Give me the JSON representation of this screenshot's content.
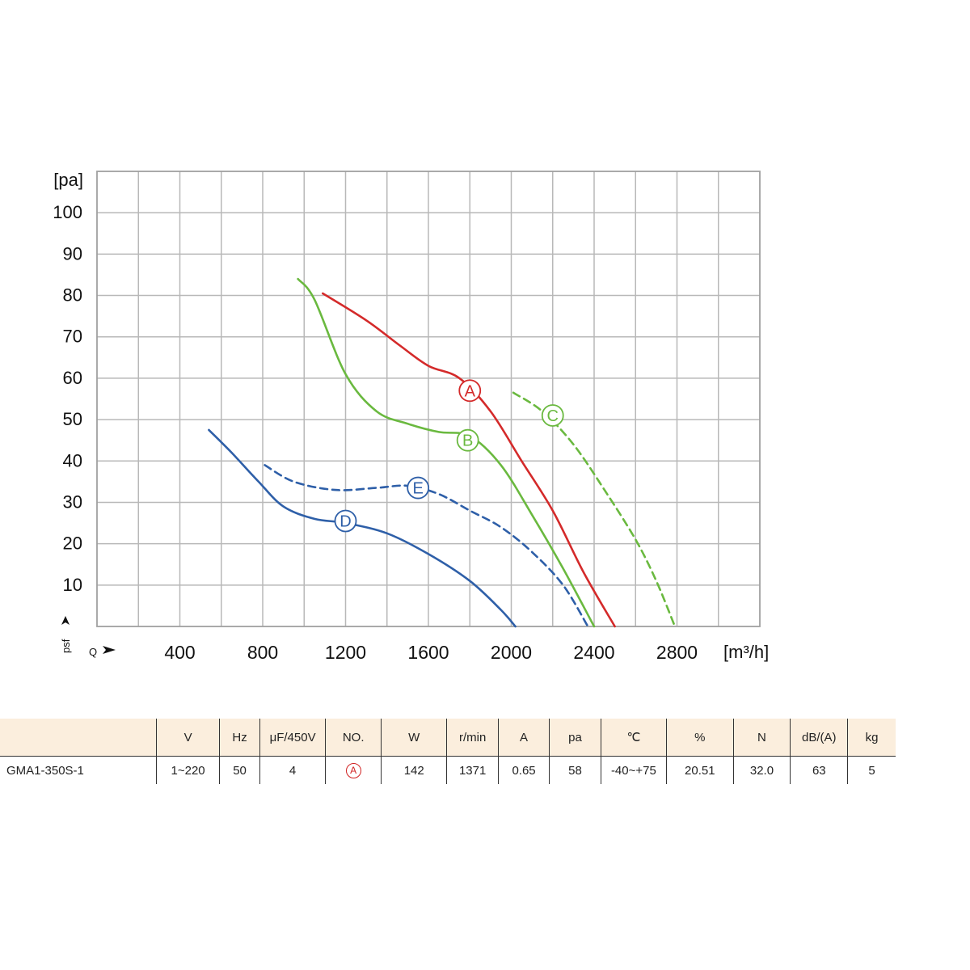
{
  "chart_data": {
    "type": "line",
    "y_unit": "[pa]",
    "x_unit": "[m³/h]",
    "y_axis_symbol": "psf",
    "x_axis_symbol": "Q",
    "xlim": [
      0,
      3200
    ],
    "ylim": [
      0,
      110
    ],
    "x_ticks": [
      400,
      800,
      1200,
      1600,
      2000,
      2400,
      2800
    ],
    "y_ticks": [
      10,
      20,
      30,
      40,
      50,
      60,
      70,
      80,
      90,
      100
    ],
    "grid": true,
    "series": [
      {
        "name": "A",
        "color": "#d42a2a",
        "dashed": false,
        "x": [
          1090,
          1300,
          1460,
          1600,
          1750,
          1900,
          2050,
          2200,
          2350,
          2500
        ],
        "y": [
          80.5,
          74,
          68,
          63,
          60,
          52,
          40,
          28,
          13,
          0
        ],
        "label_at": [
          1800,
          57
        ]
      },
      {
        "name": "B",
        "color": "#6ab93f",
        "dashed": false,
        "x": [
          970,
          1050,
          1200,
          1350,
          1500,
          1650,
          1800,
          1950,
          2100,
          2250,
          2400
        ],
        "y": [
          84,
          79,
          61,
          52,
          49,
          47,
          46,
          39,
          27,
          14,
          0
        ],
        "label_at": [
          1790,
          45
        ]
      },
      {
        "name": "C",
        "color": "#6ab93f",
        "dashed": true,
        "x": [
          2010,
          2150,
          2300,
          2450,
          2600,
          2700,
          2790
        ],
        "y": [
          56.5,
          52,
          44,
          33,
          21,
          11,
          0
        ],
        "label_at": [
          2200,
          51
        ]
      },
      {
        "name": "D",
        "color": "#2e5fa8",
        "dashed": false,
        "x": [
          540,
          650,
          780,
          900,
          1050,
          1200,
          1400,
          1600,
          1800,
          1950,
          2020
        ],
        "y": [
          47.5,
          42,
          35,
          29,
          26,
          25,
          22.5,
          17.5,
          11,
          4,
          0
        ],
        "label_at": [
          1200,
          25.5
        ]
      },
      {
        "name": "E",
        "color": "#2e5fa8",
        "dashed": true,
        "x": [
          810,
          950,
          1150,
          1350,
          1500,
          1650,
          1800,
          1950,
          2100,
          2250,
          2370
        ],
        "y": [
          39,
          35,
          33,
          33.5,
          34,
          32,
          28,
          24,
          18,
          10,
          0
        ],
        "label_at": [
          1550,
          33.5
        ]
      }
    ]
  },
  "table": {
    "headers": [
      "",
      "V",
      "Hz",
      "μF/450V",
      "NO.",
      "W",
      "r/min",
      "A",
      "pa",
      "℃",
      "%",
      "N",
      "dB/(A)",
      "kg"
    ],
    "row": [
      "GMA1-350S-1",
      "1~220",
      "50",
      "4",
      "A",
      "142",
      "1371",
      "0.65",
      "58",
      "-40~+75",
      "20.51",
      "32.0",
      "63",
      "5"
    ]
  }
}
